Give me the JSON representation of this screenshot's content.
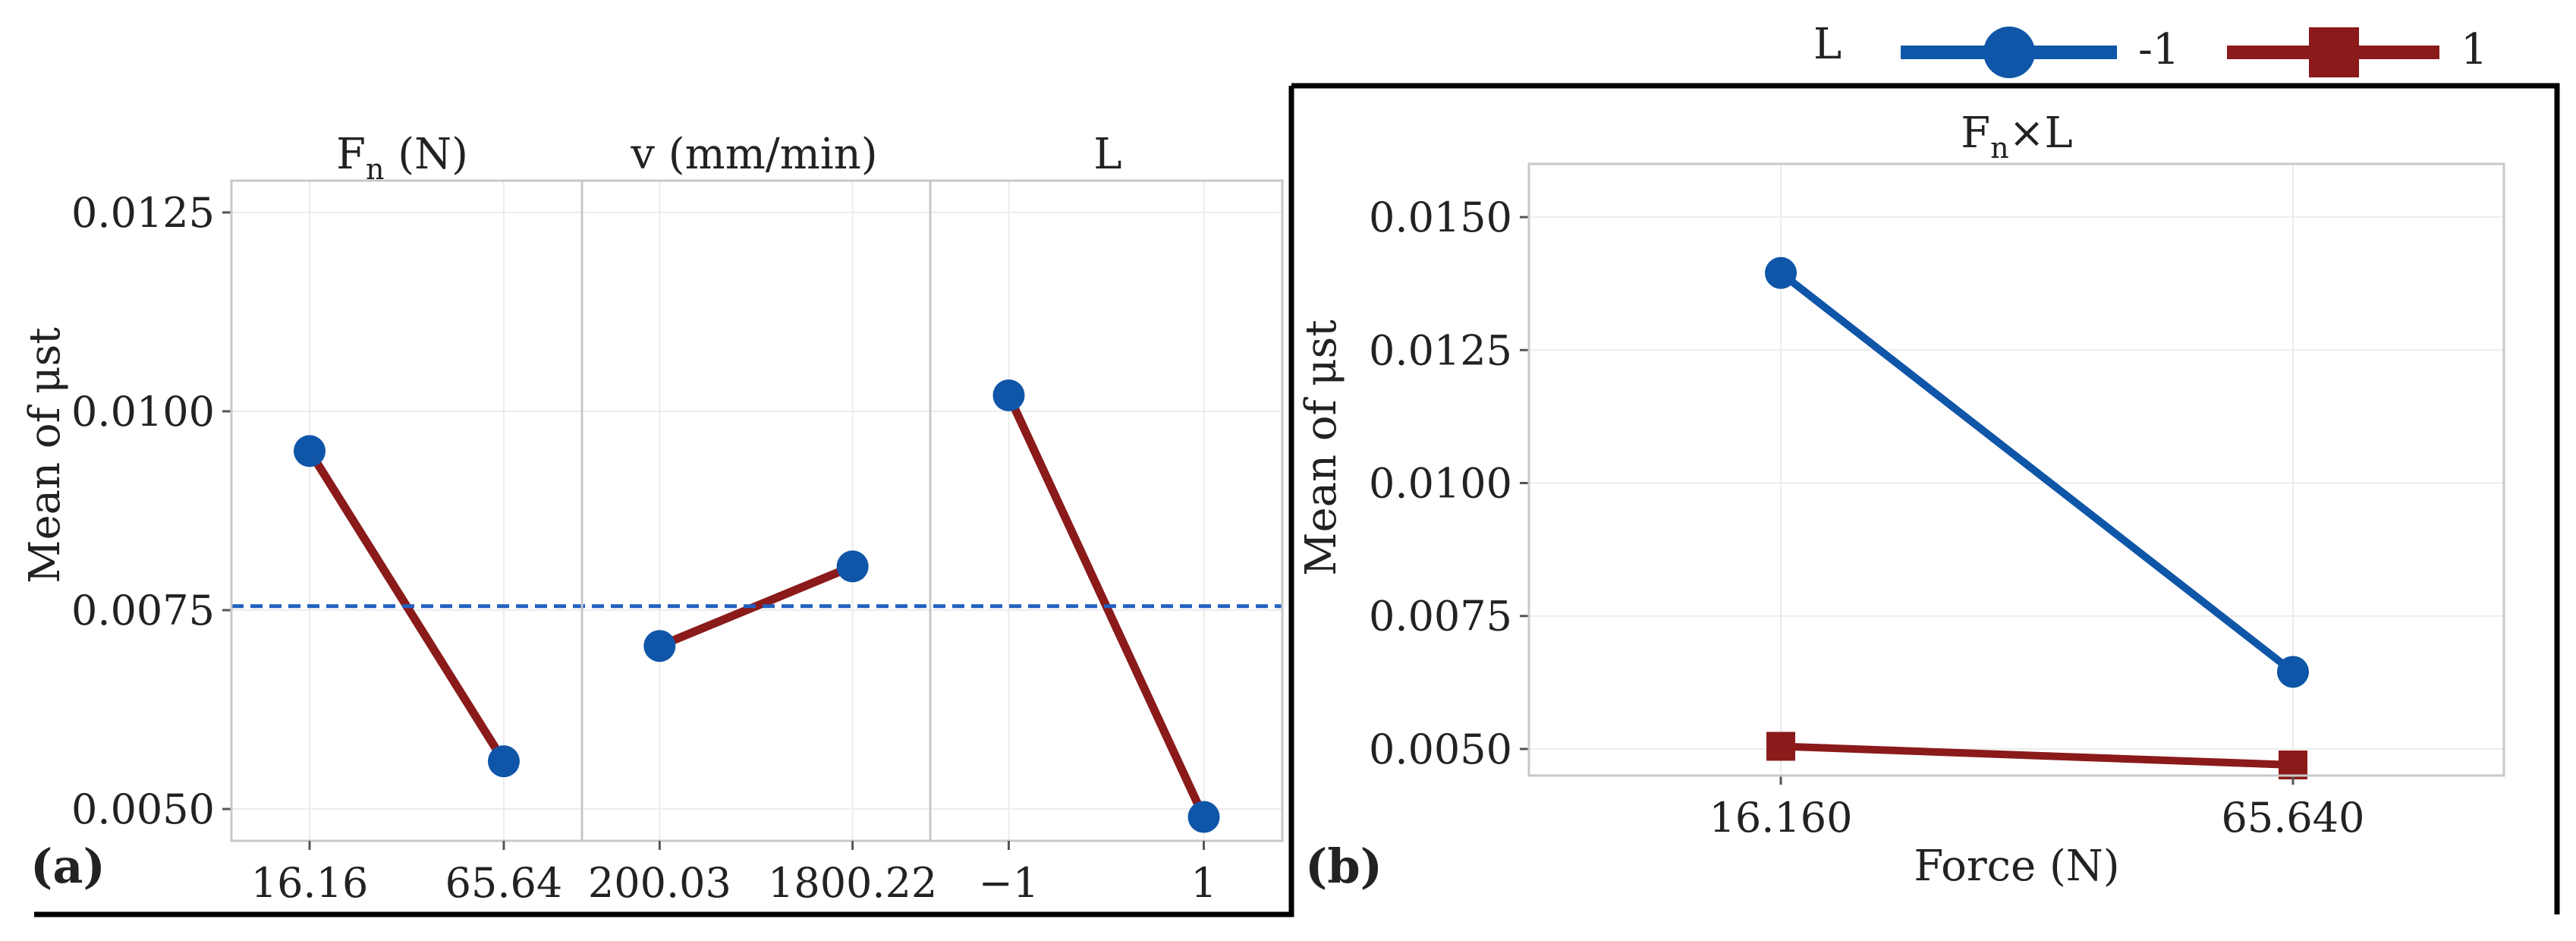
{
  "colors": {
    "series_a": "#0f56a8",
    "series_b": "#8b1a1a",
    "grand_mean": "#2060c0",
    "grid": "#ececec",
    "panel_border": "#c8c8c8",
    "frame": "#000000",
    "text": "#222222"
  },
  "chart_data": [
    {
      "type": "line",
      "label": "(a)",
      "ylabel": "Mean of μst",
      "ylim": [
        0.0046,
        0.0129
      ],
      "yticks": [
        "0.0050",
        "0.0075",
        "0.0100",
        "0.0125"
      ],
      "yticks_values": [
        0.005,
        0.0075,
        0.01,
        0.0125
      ],
      "grand_mean": 0.00755,
      "panels": [
        {
          "title_main": "F",
          "title_sub": "n",
          "title_rest": " (N)",
          "categories": [
            "16.16",
            "65.64"
          ],
          "values": [
            0.0095,
            0.0056
          ]
        },
        {
          "title_main": "v (mm/min)",
          "title_sub": "",
          "title_rest": "",
          "categories": [
            "200.03",
            "1800.22"
          ],
          "values": [
            0.00705,
            0.00805
          ]
        },
        {
          "title_main": "L",
          "title_sub": "",
          "title_rest": "",
          "categories": [
            "−1",
            "1"
          ],
          "values": [
            0.0102,
            0.0049
          ]
        }
      ]
    },
    {
      "type": "line",
      "label": "(b)",
      "title_main": "F",
      "title_sub": "n",
      "title_rest": "×L",
      "xlabel": "Force (N)",
      "ylabel": "Mean of μst",
      "ylim": [
        0.0045,
        0.016
      ],
      "yticks": [
        "0.0050",
        "0.0075",
        "0.0100",
        "0.0125",
        "0.0150"
      ],
      "yticks_values": [
        0.005,
        0.0075,
        0.01,
        0.0125,
        0.015
      ],
      "categories": [
        "16.160",
        "65.640"
      ],
      "legend": {
        "title": "L",
        "position": "top-right"
      },
      "series": [
        {
          "name": "-1",
          "marker": "circle",
          "values": [
            0.01395,
            0.00645
          ]
        },
        {
          "name": "1",
          "marker": "square",
          "values": [
            0.00505,
            0.0047
          ]
        }
      ]
    }
  ]
}
